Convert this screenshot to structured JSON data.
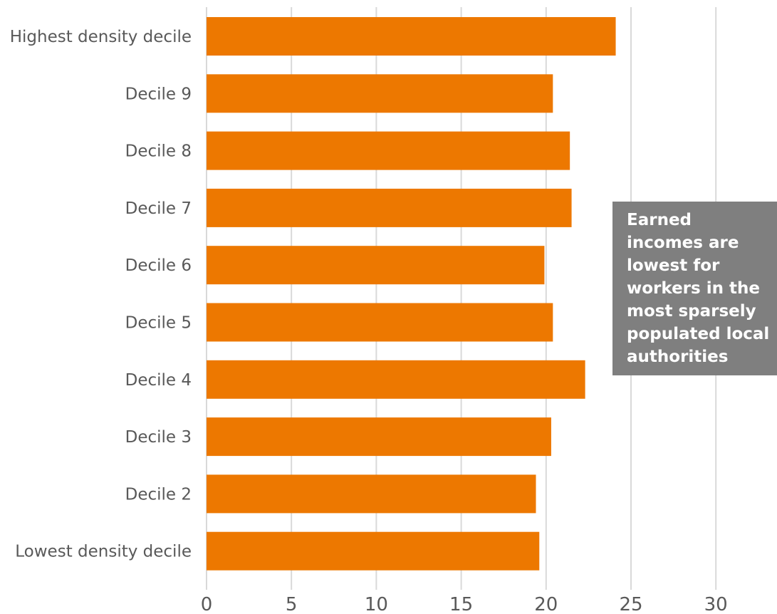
{
  "chart_data": {
    "type": "bar",
    "orientation": "horizontal",
    "categories": [
      "Highest density decile",
      "Decile 9",
      "Decile 8",
      "Decile 7",
      "Decile 6",
      "Decile 5",
      "Decile 4",
      "Decile 3",
      "Decile 2",
      "Lowest density decile"
    ],
    "values": [
      24.1,
      20.4,
      21.4,
      21.5,
      19.9,
      20.4,
      22.3,
      20.3,
      19.4,
      19.6
    ],
    "title": "",
    "xlabel": "",
    "ylabel": "",
    "xlim": [
      0,
      30
    ],
    "xticks": [
      0,
      5,
      10,
      15,
      20,
      25,
      30
    ],
    "grid": "vertical",
    "legend": "none",
    "bar_color": "#ed7800",
    "grid_color": "#d9d9d9",
    "annotation": "Earned\nincomes are\nlowest for\nworkers in the\nmost sparsely\npopulated local\nauthorities",
    "annotation_color": "#7f7f7f"
  }
}
